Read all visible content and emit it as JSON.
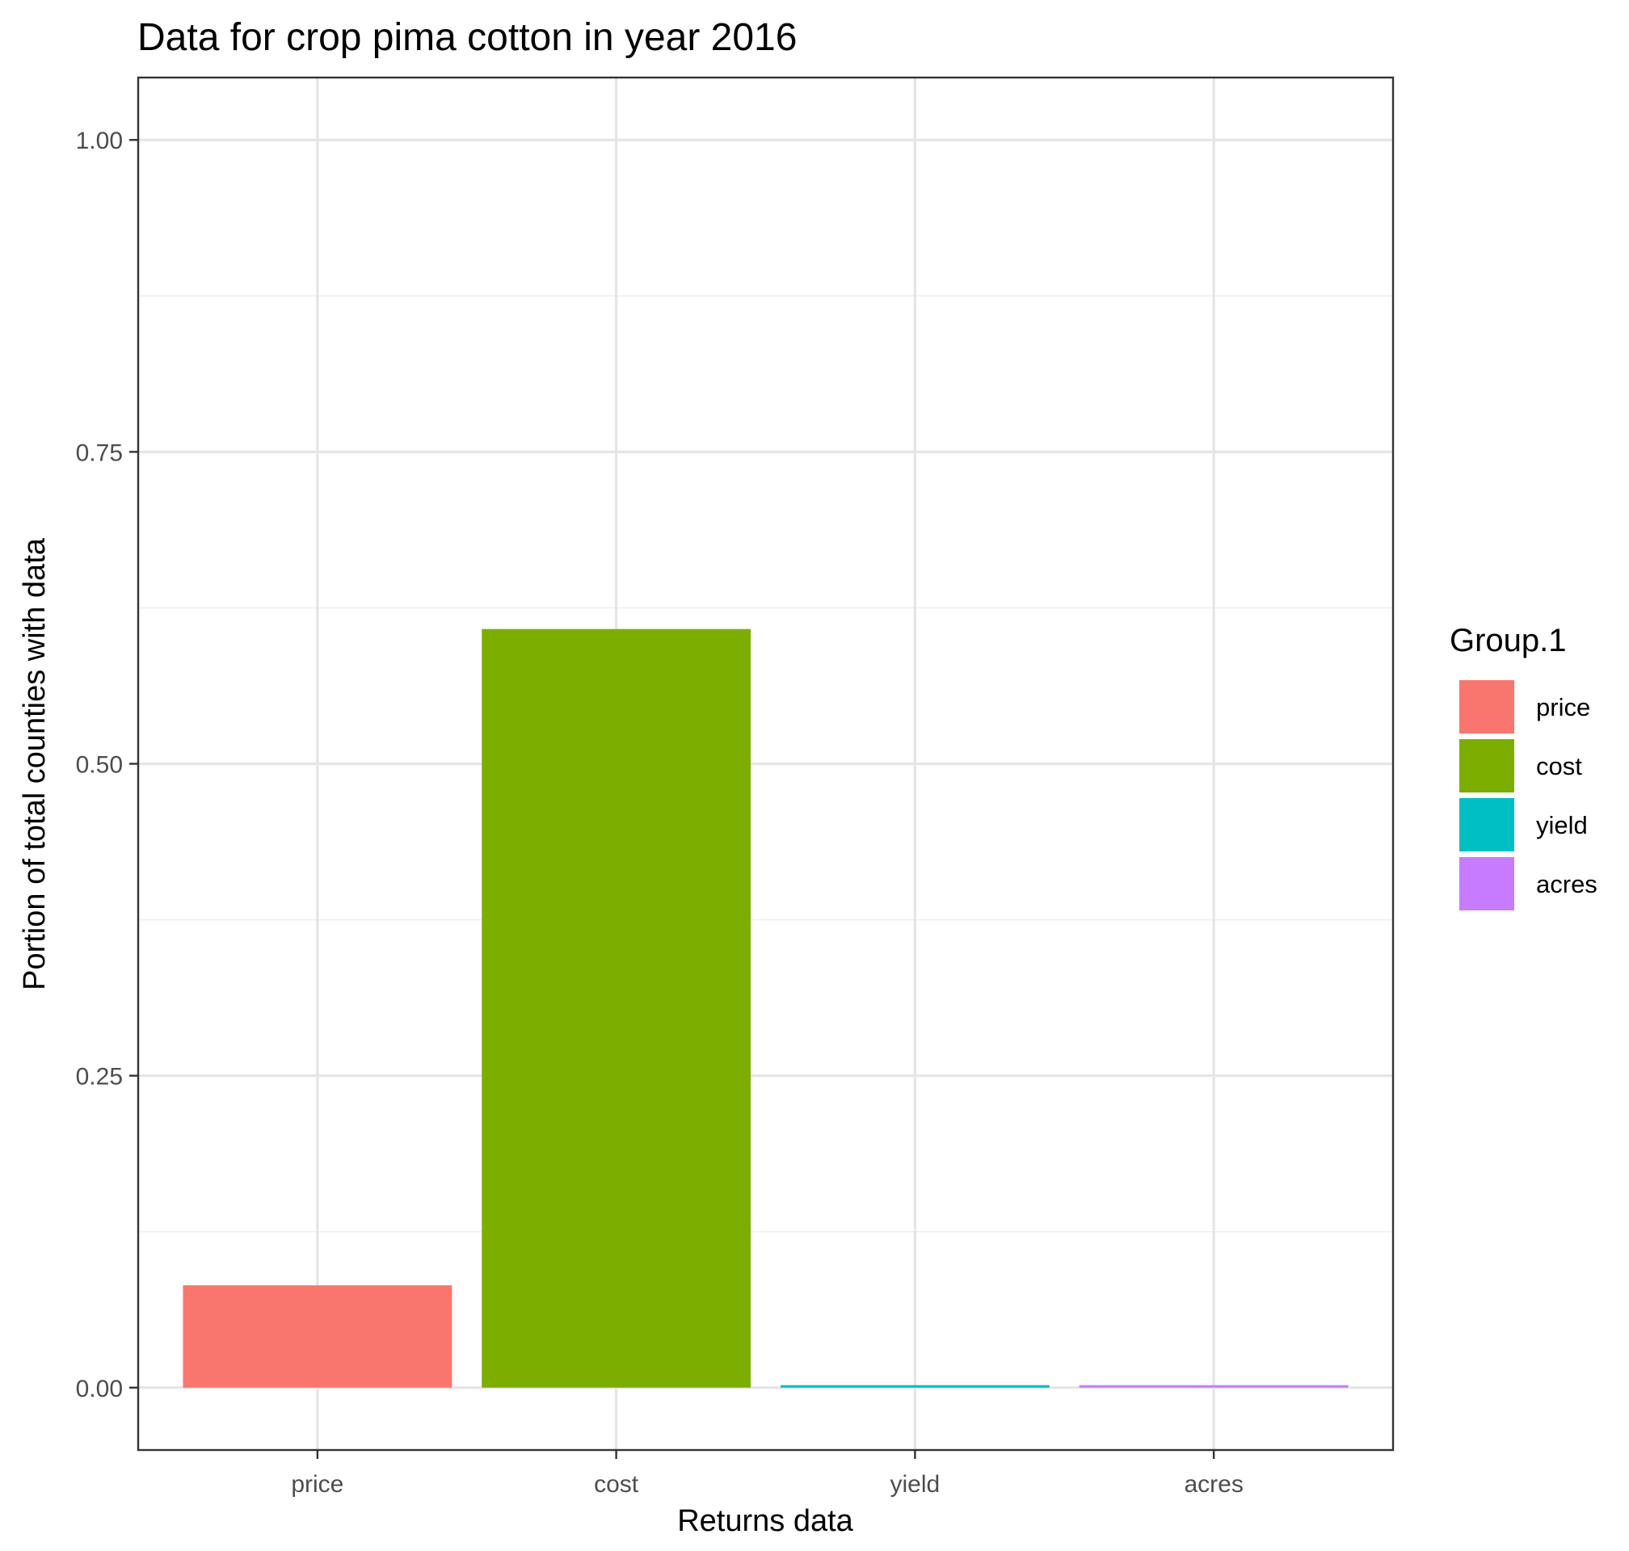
{
  "chart_data": {
    "type": "bar",
    "title": "Data for crop pima cotton in year 2016",
    "xlabel": "Returns data",
    "ylabel": "Portion of total counties with data",
    "categories": [
      "price",
      "cost",
      "yield",
      "acres"
    ],
    "values": [
      0.082,
      0.608,
      0.002,
      0.002
    ],
    "colors": [
      "#F8766D",
      "#7CAE00",
      "#00BFC4",
      "#C77CFF"
    ],
    "ylim": [
      -0.05,
      1.05
    ],
    "yticks": [
      0.0,
      0.25,
      0.5,
      0.75,
      1.0
    ],
    "ytick_labels": [
      "0.00",
      "0.25",
      "0.50",
      "0.75",
      "1.00"
    ],
    "grid": true,
    "legend": {
      "title": "Group.1",
      "position": "right",
      "entries": [
        "price",
        "cost",
        "yield",
        "acres"
      ]
    }
  }
}
